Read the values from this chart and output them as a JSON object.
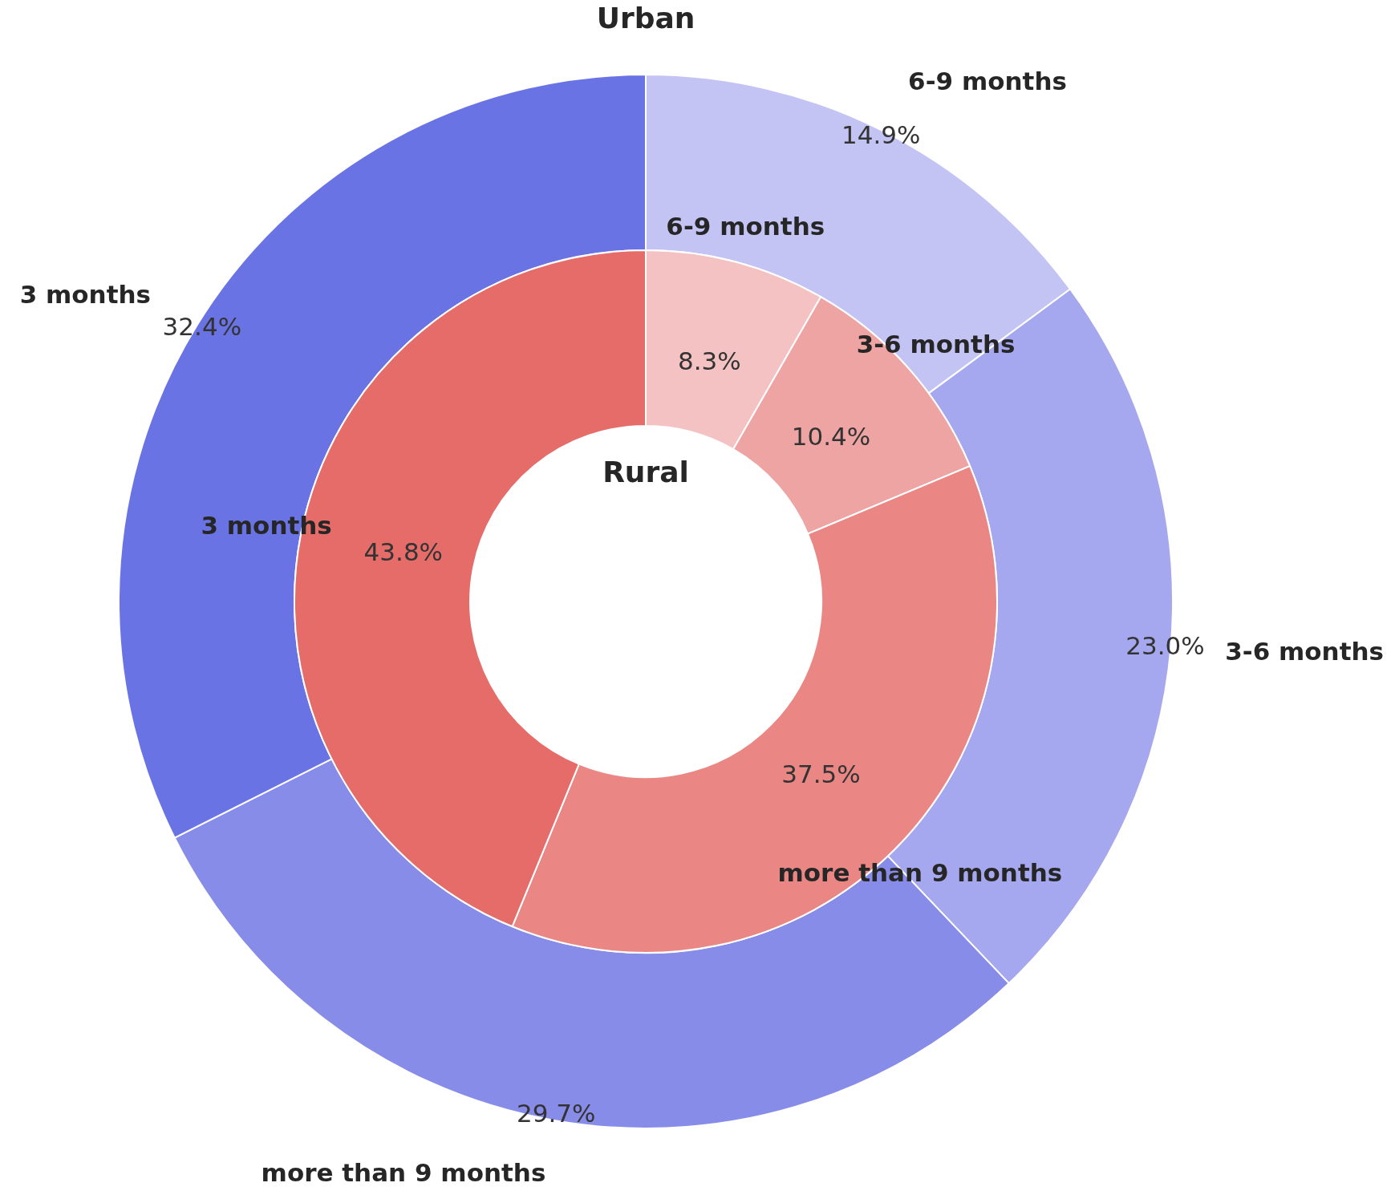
{
  "chart_data": {
    "type": "donut",
    "categories": [
      "6-9 months",
      "3-6 months",
      "more than 9 months",
      "3 months"
    ],
    "series": [
      {
        "name": "Urban",
        "values": [
          14.9,
          23.0,
          29.7,
          32.4
        ],
        "colors": [
          "#c3c3f4",
          "#a5a8ef",
          "#878ce8",
          "#6a73e3"
        ],
        "value_labels": [
          "14.9%",
          "23.0%",
          "29.7%",
          "32.4%"
        ]
      },
      {
        "name": "Rural",
        "values": [
          8.3,
          10.4,
          37.5,
          43.8
        ],
        "colors": [
          "#f4c2c2",
          "#eea4a2",
          "#ea8785",
          "#e56c68"
        ],
        "value_labels": [
          "8.3%",
          "10.4%",
          "37.5%",
          "43.8%"
        ]
      }
    ]
  }
}
